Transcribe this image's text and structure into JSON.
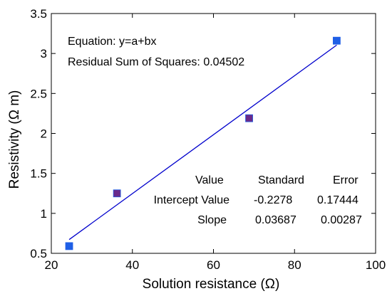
{
  "chart_data": {
    "type": "scatter",
    "title": "",
    "xlabel": "Solution resistance (Ω)",
    "ylabel": "Resistivity (Ω m)",
    "xlim": [
      20,
      100
    ],
    "ylim": [
      0.5,
      3.5
    ],
    "x_ticks": [
      "20",
      "40",
      "60",
      "80",
      "100"
    ],
    "y_ticks": [
      "0.5",
      "1",
      "1.5",
      "2",
      "2.5",
      "3",
      "3.5"
    ],
    "grid": false,
    "legend": "none",
    "points": [
      {
        "x": 24.4,
        "y": 0.59,
        "color": "#1f5fe6"
      },
      {
        "x": 36.2,
        "y": 1.25,
        "color": "#6a2a8a"
      },
      {
        "x": 68.8,
        "y": 2.19,
        "color": "#6a2a8a"
      },
      {
        "x": 90.4,
        "y": 3.16,
        "color": "#1f5fe6"
      }
    ],
    "fit_line": {
      "x": [
        24.4,
        90.4
      ],
      "intercept": -0.2278,
      "slope": 0.03687,
      "color": "#0000cc"
    },
    "annotations": {
      "equation": "Equation: y=a+bx",
      "rss": "Residual Sum of Squares: 0.04502"
    },
    "stats_table": {
      "header": [
        "Value",
        "Standard",
        "Error"
      ],
      "rows": [
        [
          "Intercept Value",
          "-0.2278",
          "0.17444"
        ],
        [
          "Slope",
          "0.03687",
          "0.00287"
        ]
      ]
    }
  }
}
